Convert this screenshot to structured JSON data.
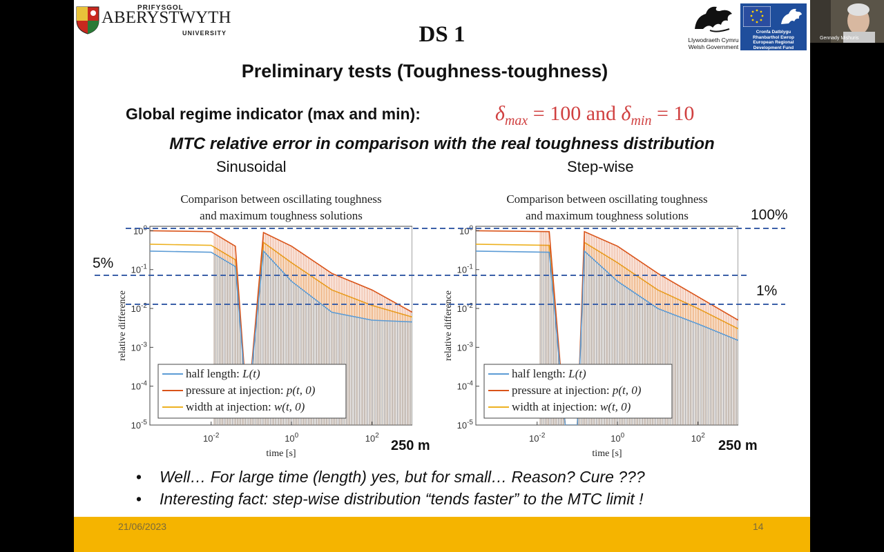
{
  "university": {
    "line1": "PRIFYSGOL",
    "name": "ABERYSTWYTH",
    "line2": "UNIVERSITY"
  },
  "welsh_gov": {
    "line1": "Llywodraeth Cymru",
    "line2": "Welsh Government"
  },
  "eu_logo": {
    "line1": "Cronfa Datblygu",
    "line2": "Rhanbarthol Ewrop",
    "line3": "European Regional",
    "line4": "Development Fund"
  },
  "webcam": {
    "name": "Gennady Mishuris"
  },
  "slide": {
    "ds_title": "DS 1",
    "main_title": "Preliminary tests (Toughness-toughness)",
    "regime_label": "Global regime indicator (max and min):",
    "regime_formula": {
      "delta": "δ",
      "max_sub": "max",
      "max_val": " = 100 and ",
      "min_sub": "min",
      "min_val": " = 10"
    },
    "mtc_title": "MTC relative error in comparison with the real toughness distribution",
    "sin_label": "Sinusoidal",
    "step_label": "Step-wise",
    "pct_5": "5%",
    "pct_100": "100%",
    "pct_1": "1%",
    "m250_left": "250 m",
    "m250_right": "250 m",
    "bullets": [
      "Well… For large time (length) yes, but for small… Reason? Cure ???",
      "Interesting fact: step-wise distribution “tends faster” to the MTC limit !"
    ],
    "bullet_symbol": "•",
    "date": "21/06/2023",
    "page_number": "14"
  },
  "colors": {
    "footer": "#f5b400",
    "formula": "#d04040",
    "dashed": "#3a5fa8",
    "series_L": "#5b9bd5",
    "series_p": "#d95319",
    "series_w": "#edb120"
  },
  "chart_data": [
    {
      "type": "line",
      "title": "Comparison between oscillating toughness\nand maximum toughness solutions",
      "title_line1": "Comparison between oscillating toughness",
      "title_line2": "and maximum toughness solutions",
      "xlabel": "time [s]",
      "ylabel": "relative difference",
      "x_scale": "log",
      "y_scale": "log",
      "xlim": [
        0.0003,
        1000
      ],
      "ylim": [
        1e-05,
        1.3
      ],
      "x_ticks": [
        "10^-2",
        "10^0",
        "10^2"
      ],
      "y_ticks": [
        "10^-5",
        "10^-4",
        "10^-3",
        "10^-2",
        "10^-1",
        "10^0"
      ],
      "legend_position": "bottom-left",
      "series": [
        {
          "name": "half length: L(t)",
          "color": "#5b9bd5",
          "x": [
            0.0003,
            0.01,
            0.04,
            0.08,
            0.2,
            1,
            10,
            100,
            1000
          ],
          "y": [
            0.3,
            0.28,
            0.12,
            2e-05,
            0.3,
            0.05,
            0.008,
            0.005,
            0.0045
          ]
        },
        {
          "name": "pressure at injection: p(t,0)",
          "color": "#d95319",
          "x": [
            0.0003,
            0.01,
            0.04,
            0.08,
            0.2,
            1,
            10,
            100,
            1000
          ],
          "y": [
            1,
            0.95,
            0.4,
            2e-05,
            0.9,
            0.4,
            0.08,
            0.03,
            0.008
          ]
        },
        {
          "name": "width at injection: w(t,0)",
          "color": "#edb120",
          "x": [
            0.0003,
            0.01,
            0.04,
            0.08,
            0.2,
            1,
            10,
            100,
            1000
          ],
          "y": [
            0.45,
            0.42,
            0.18,
            2e-05,
            0.5,
            0.15,
            0.03,
            0.012,
            0.006
          ]
        }
      ],
      "math_labels": {
        "L": "L(t)",
        "p": "p(t, 0)",
        "w": "w(t, 0)"
      },
      "legend_text": [
        "half length: ",
        "pressure at injection: ",
        "width at injection: "
      ]
    },
    {
      "type": "line",
      "title": "Comparison between oscillating toughness\nand maximum toughness solutions",
      "title_line1": "Comparison between oscillating toughness",
      "title_line2": "and maximum toughness solutions",
      "xlabel": "time [s]",
      "ylabel": "relative difference",
      "x_scale": "log",
      "y_scale": "log",
      "xlim": [
        0.0003,
        1000
      ],
      "ylim": [
        1e-05,
        1.3
      ],
      "x_ticks": [
        "10^-2",
        "10^0",
        "10^2"
      ],
      "y_ticks": [
        "10^-5",
        "10^-4",
        "10^-3",
        "10^-2",
        "10^-1",
        "10^0"
      ],
      "legend_position": "bottom-left",
      "series": [
        {
          "name": "half length: L(t)",
          "color": "#5b9bd5",
          "x": [
            0.0003,
            0.02,
            0.05,
            0.1,
            0.15,
            1,
            10,
            100,
            1000
          ],
          "y": [
            0.3,
            0.28,
            1e-05,
            1e-05,
            0.3,
            0.05,
            0.01,
            0.004,
            0.0015
          ]
        },
        {
          "name": "pressure at injection: p(t,0)",
          "color": "#d95319",
          "x": [
            0.0003,
            0.02,
            0.05,
            0.1,
            0.15,
            1,
            10,
            100,
            1000
          ],
          "y": [
            1,
            0.95,
            1e-05,
            1e-05,
            0.95,
            0.4,
            0.08,
            0.02,
            0.005
          ]
        },
        {
          "name": "width at injection: w(t,0)",
          "color": "#edb120",
          "x": [
            0.0003,
            0.02,
            0.05,
            0.1,
            0.15,
            1,
            10,
            100,
            1000
          ],
          "y": [
            0.45,
            0.42,
            1e-05,
            1e-05,
            0.5,
            0.15,
            0.03,
            0.01,
            0.003
          ]
        }
      ],
      "math_labels": {
        "L": "L(t)",
        "p": "p(t, 0)",
        "w": "w(t, 0)"
      },
      "legend_text": [
        "half length: ",
        "pressure at injection: ",
        "width at injection: "
      ]
    }
  ]
}
